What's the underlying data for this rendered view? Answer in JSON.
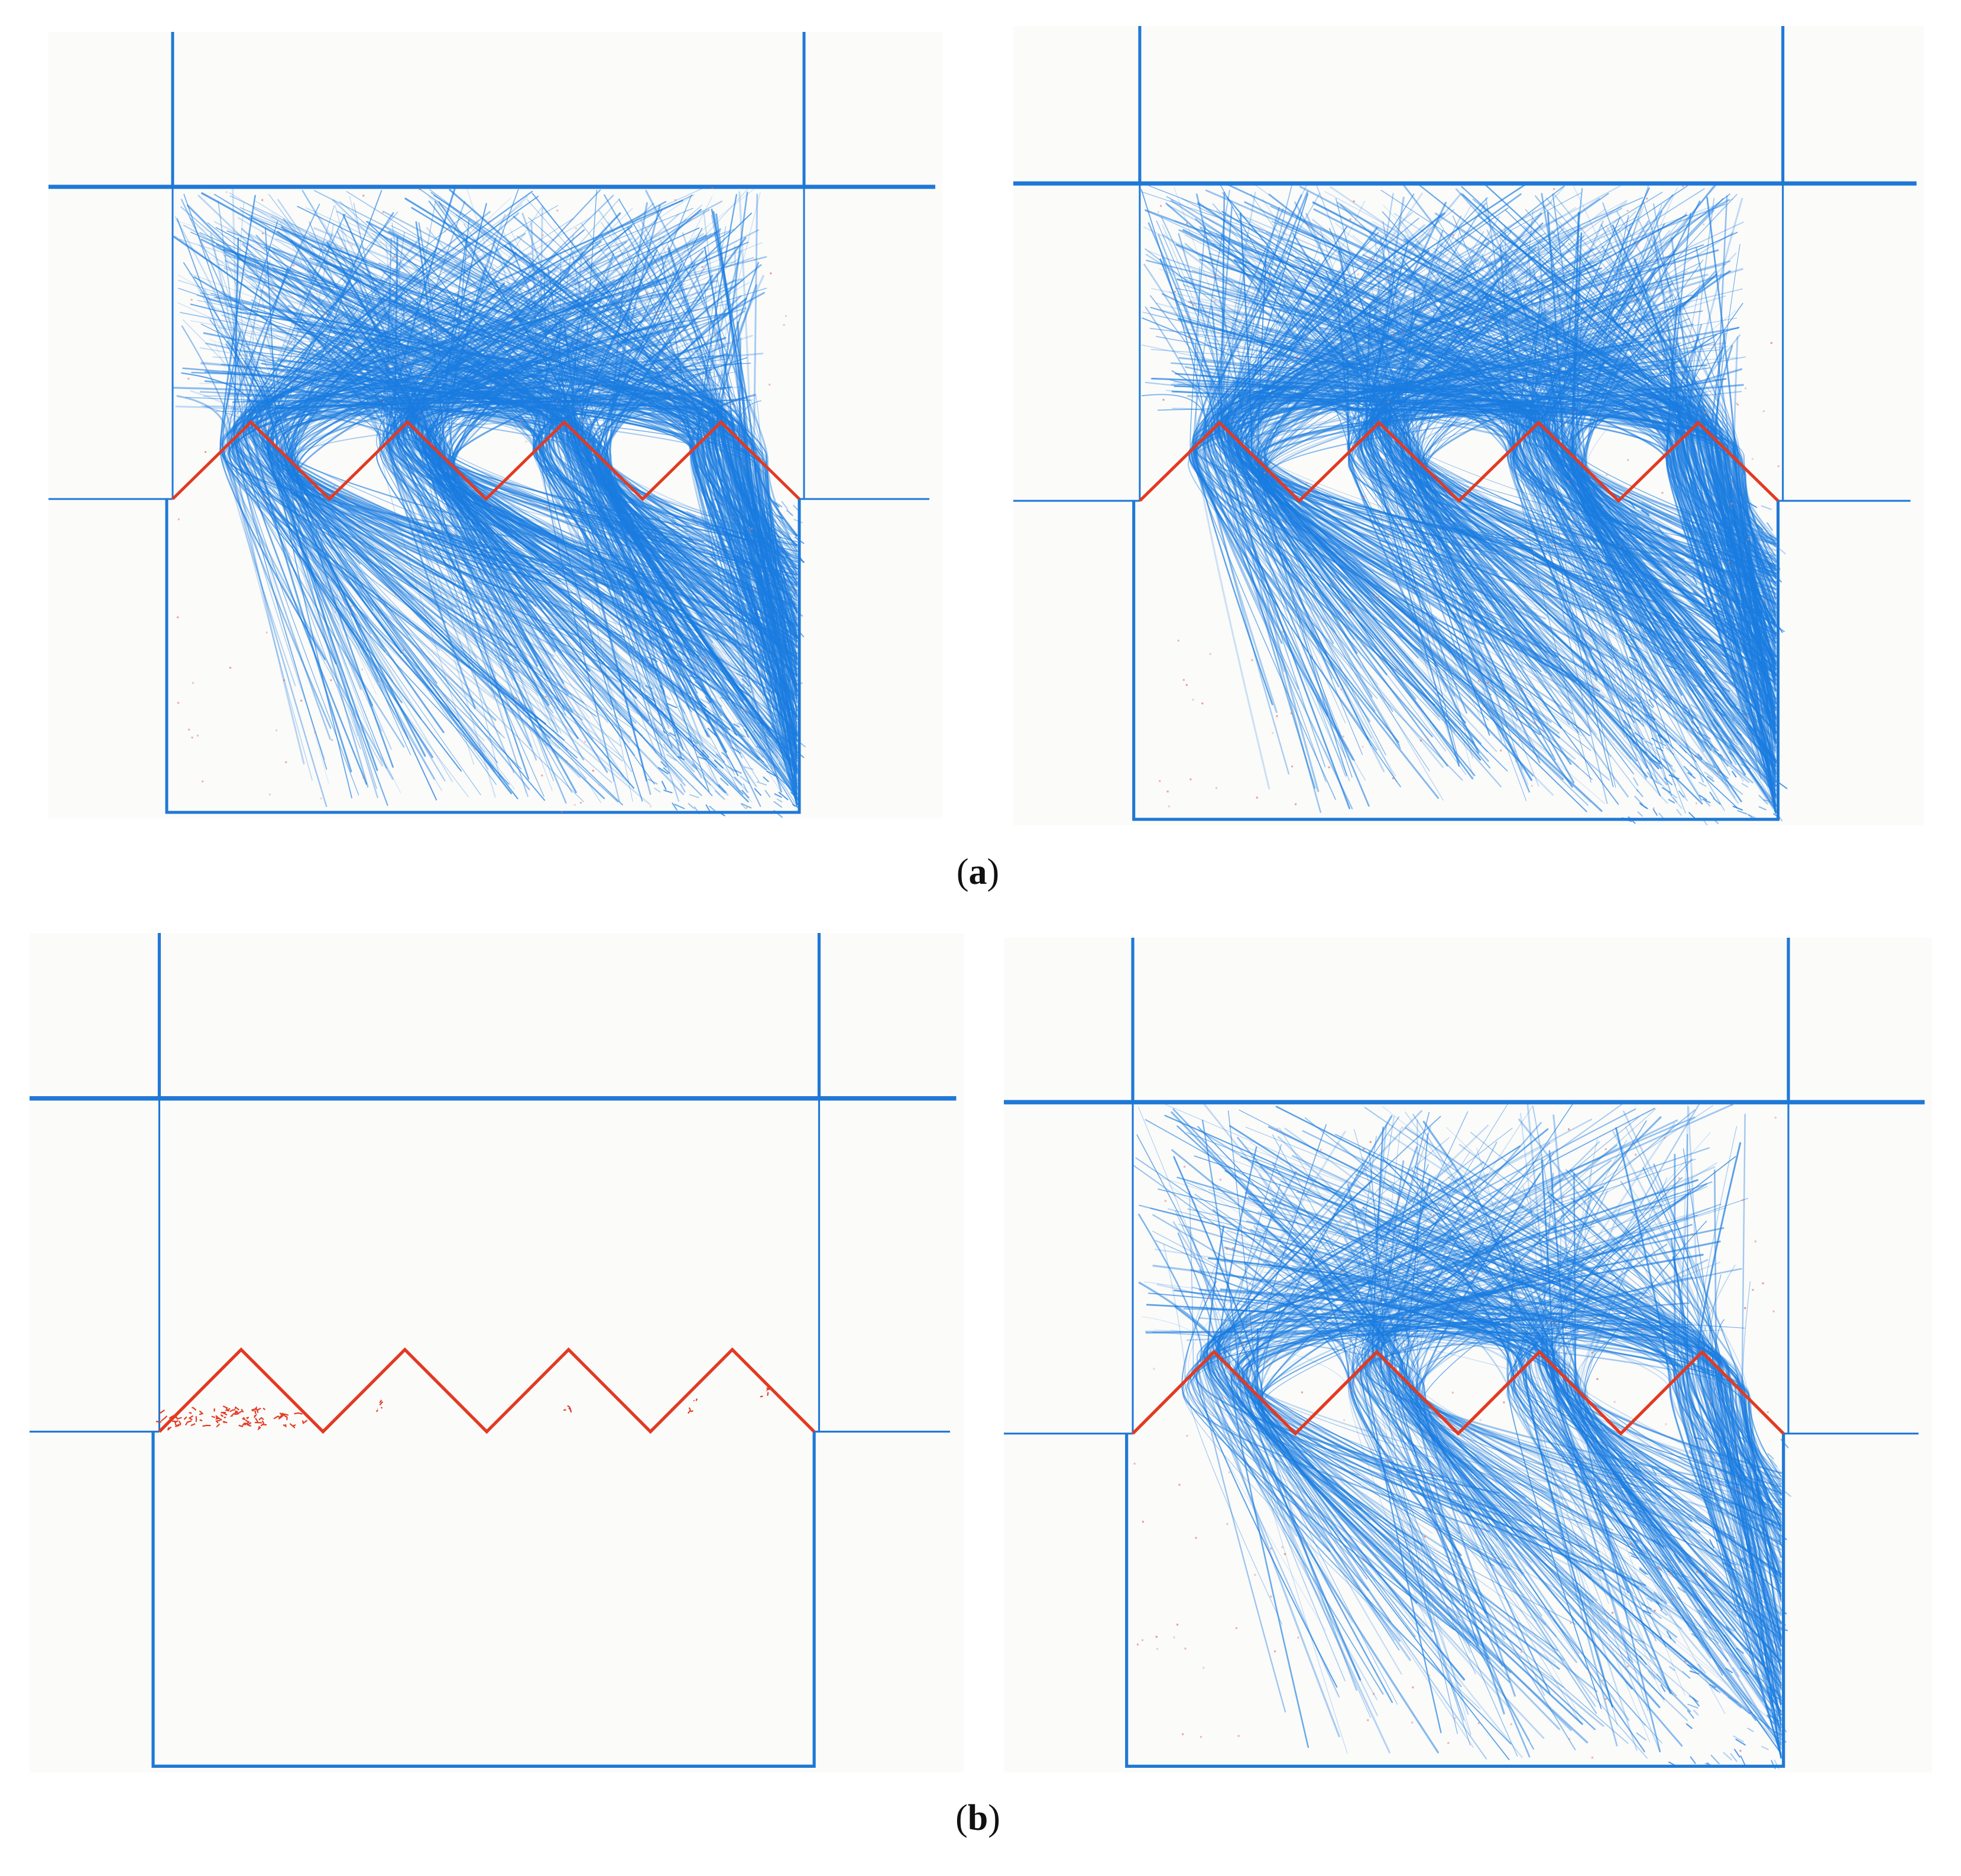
{
  "figure": {
    "captions": {
      "a_open": "(",
      "a_letter": "a",
      "a_close": ")",
      "b_open": "(",
      "b_letter": "b",
      "b_close": ")"
    },
    "colors": {
      "background": "#fbfbfa",
      "boundary_blue": "#1f78d6",
      "force_chain_blue": "#1a7ce0",
      "crack_red": "#e23a22",
      "tension_red": "#e07a70"
    },
    "panels": [
      {
        "id": "a-left",
        "row": "a",
        "chain_density": "high",
        "shows_force_chains": true
      },
      {
        "id": "a-right",
        "row": "a",
        "chain_density": "high",
        "shows_force_chains": true
      },
      {
        "id": "b-left",
        "row": "b",
        "chain_density": "none",
        "shows_force_chains": false,
        "shows_joint_cracks": true
      },
      {
        "id": "b-right",
        "row": "b",
        "chain_density": "medium",
        "shows_force_chains": true
      }
    ]
  }
}
